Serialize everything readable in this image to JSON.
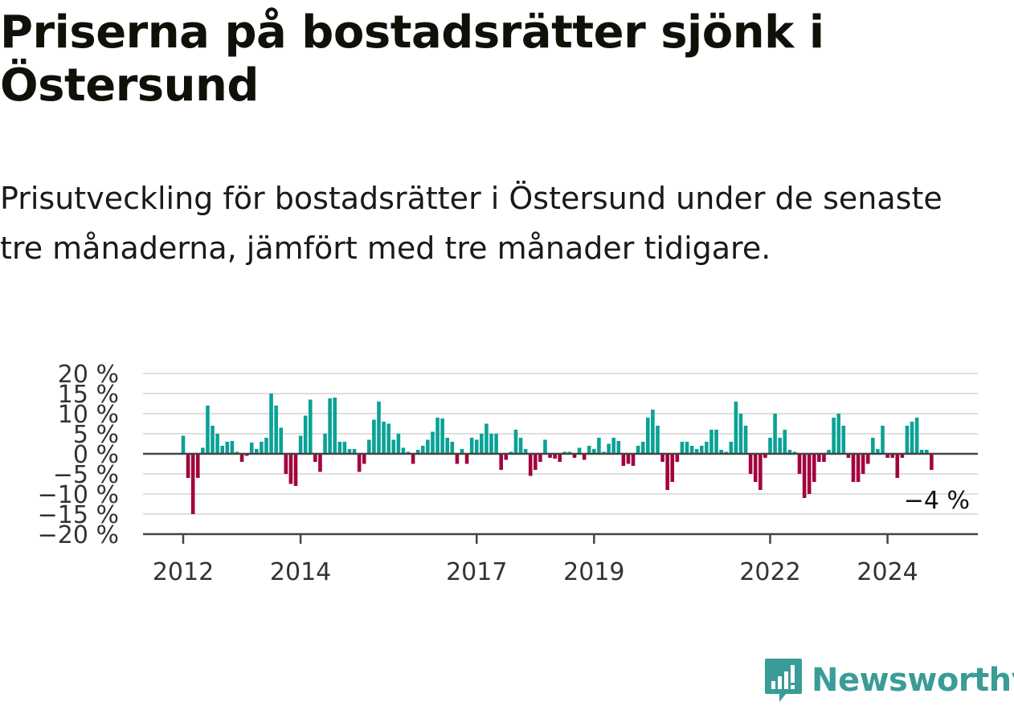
{
  "header": {
    "title": "Priserna på bostadsrätter sjönk i Östersund",
    "subtitle": "Prisutveckling för bostadsrätter i Östersund under de senaste tre månaderna, jämfört med tre månader tidigare."
  },
  "brand": {
    "name": "Newsworthy",
    "color": "#3a9c96"
  },
  "chart_data": {
    "type": "bar",
    "x_start": "2012-01",
    "x_end": "2024-12",
    "ylim": [
      -20,
      20
    ],
    "yticks": [
      -20,
      -15,
      -10,
      -5,
      0,
      5,
      10,
      15,
      20
    ],
    "ytick_labels": [
      "−20 %",
      "−15 %",
      "−10 %",
      "−5 %",
      "0 %",
      "5 %",
      "10 %",
      "15 %",
      "20 %"
    ],
    "xticks": [
      2012,
      2014,
      2017,
      2019,
      2022,
      2024
    ],
    "xtick_labels": [
      "2012",
      "2014",
      "2017",
      "2019",
      "2022",
      "2024"
    ],
    "grid": true,
    "positive_color": "#0aa296",
    "negative_color": "#a3003e",
    "annotation": {
      "text": "−4 %",
      "value": -4
    },
    "values": [
      4.5,
      -6,
      -15,
      -6,
      1.5,
      12,
      7,
      5,
      2,
      3,
      3.2,
      0.5,
      -2,
      -0.5,
      2.8,
      1.2,
      3,
      4,
      15,
      12,
      6.5,
      -5,
      -7.5,
      -8,
      4.5,
      9.5,
      13.5,
      -2,
      -4.5,
      5,
      13.8,
      14,
      3,
      3,
      1.2,
      1.2,
      -4.5,
      -2.5,
      3.5,
      8.5,
      13,
      8,
      7.5,
      3.5,
      5,
      1.5,
      0.5,
      -2.5,
      1,
      2,
      3.5,
      5.5,
      9,
      8.8,
      4,
      3,
      -2.5,
      1.2,
      -2.5,
      4,
      3.5,
      5,
      7.5,
      5,
      5,
      -4,
      -1.5,
      0.5,
      6,
      4,
      1.2,
      -5.5,
      -4,
      -2,
      3.5,
      -1,
      -1.2,
      -2,
      0.5,
      0.5,
      -1,
      1.5,
      -1.5,
      2,
      1.2,
      4,
      0.5,
      2.5,
      4,
      3.2,
      -3,
      -2.5,
      -3,
      2,
      3,
      9,
      11,
      7,
      -2,
      -9,
      -7,
      -2,
      3,
      3,
      2,
      1.2,
      2,
      3,
      6,
      6,
      1,
      0.5,
      3,
      13,
      10,
      7,
      -5,
      -7,
      -9,
      -1,
      4,
      10,
      4,
      6,
      1,
      0.5,
      -5,
      -11,
      -10,
      -7,
      -2,
      -2,
      1,
      9,
      10,
      7,
      -1,
      -7,
      -7,
      -5,
      -2.5,
      4,
      1.2,
      7,
      -1,
      -1,
      -6,
      -1,
      7,
      8,
      9,
      1,
      1,
      -4
    ]
  }
}
